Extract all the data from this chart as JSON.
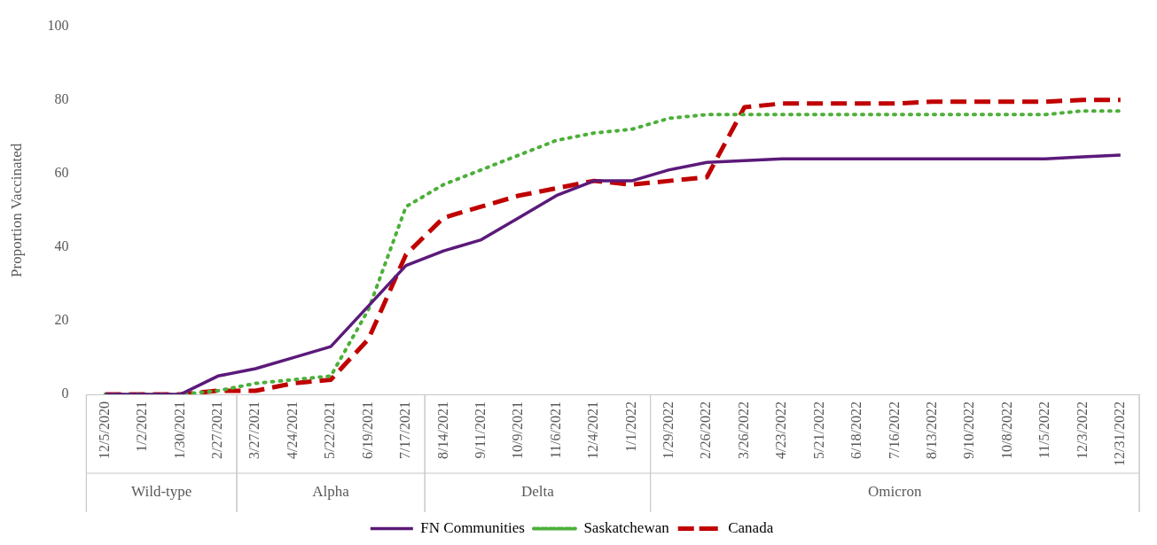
{
  "chart_data": {
    "type": "line",
    "ylabel": "Proportion Vaccinated",
    "categories": [
      "12/5/2020",
      "1/2/2021",
      "1/30/2021",
      "2/27/2021",
      "3/27/2021",
      "4/24/2021",
      "5/22/2021",
      "6/19/2021",
      "7/17/2021",
      "8/14/2021",
      "9/11/2021",
      "10/9/2021",
      "11/6/2021",
      "12/4/2021",
      "1/1/2022",
      "1/29/2022",
      "2/26/2022",
      "3/26/2022",
      "4/23/2022",
      "5/21/2022",
      "6/18/2022",
      "7/16/2022",
      "8/13/2022",
      "9/10/2022",
      "10/8/2022",
      "11/5/2022",
      "12/3/2022",
      "12/31/2022"
    ],
    "series": [
      {
        "name": "FN Communities",
        "color": "#5b1a7a",
        "line_style": "solid",
        "values": [
          0,
          0,
          0,
          5,
          7,
          10,
          13,
          24,
          35,
          39,
          42,
          48,
          54,
          58,
          58,
          61,
          63,
          63.5,
          64,
          64,
          64,
          64,
          64,
          64,
          64,
          64,
          64.5,
          65
        ]
      },
      {
        "name": "Saskatchewan",
        "color": "#4caf3a",
        "line_style": "dotted",
        "values": [
          0,
          0,
          0,
          1,
          3,
          4,
          5,
          23,
          51,
          57,
          61,
          65,
          69,
          71,
          72,
          75,
          76,
          76,
          76,
          76,
          76,
          76,
          76,
          76,
          76,
          76,
          77,
          77
        ]
      },
      {
        "name": "Canada",
        "color": "#c00000",
        "line_style": "dashed",
        "values": [
          0,
          0,
          0,
          1,
          1,
          3,
          4,
          15,
          38,
          48,
          51,
          54,
          56,
          58,
          57,
          58,
          59,
          78,
          79,
          79,
          79,
          79,
          79.5,
          79.5,
          79.5,
          79.5,
          80,
          80
        ]
      }
    ],
    "annotations": [
      "Wild-type",
      "Alpha",
      "Delta",
      "Omicron"
    ],
    "ylim": [
      0,
      100
    ],
    "yticks": [
      0,
      20,
      40,
      60,
      80,
      100
    ],
    "grid": false,
    "legend": "bottom",
    "marker": "none"
  }
}
